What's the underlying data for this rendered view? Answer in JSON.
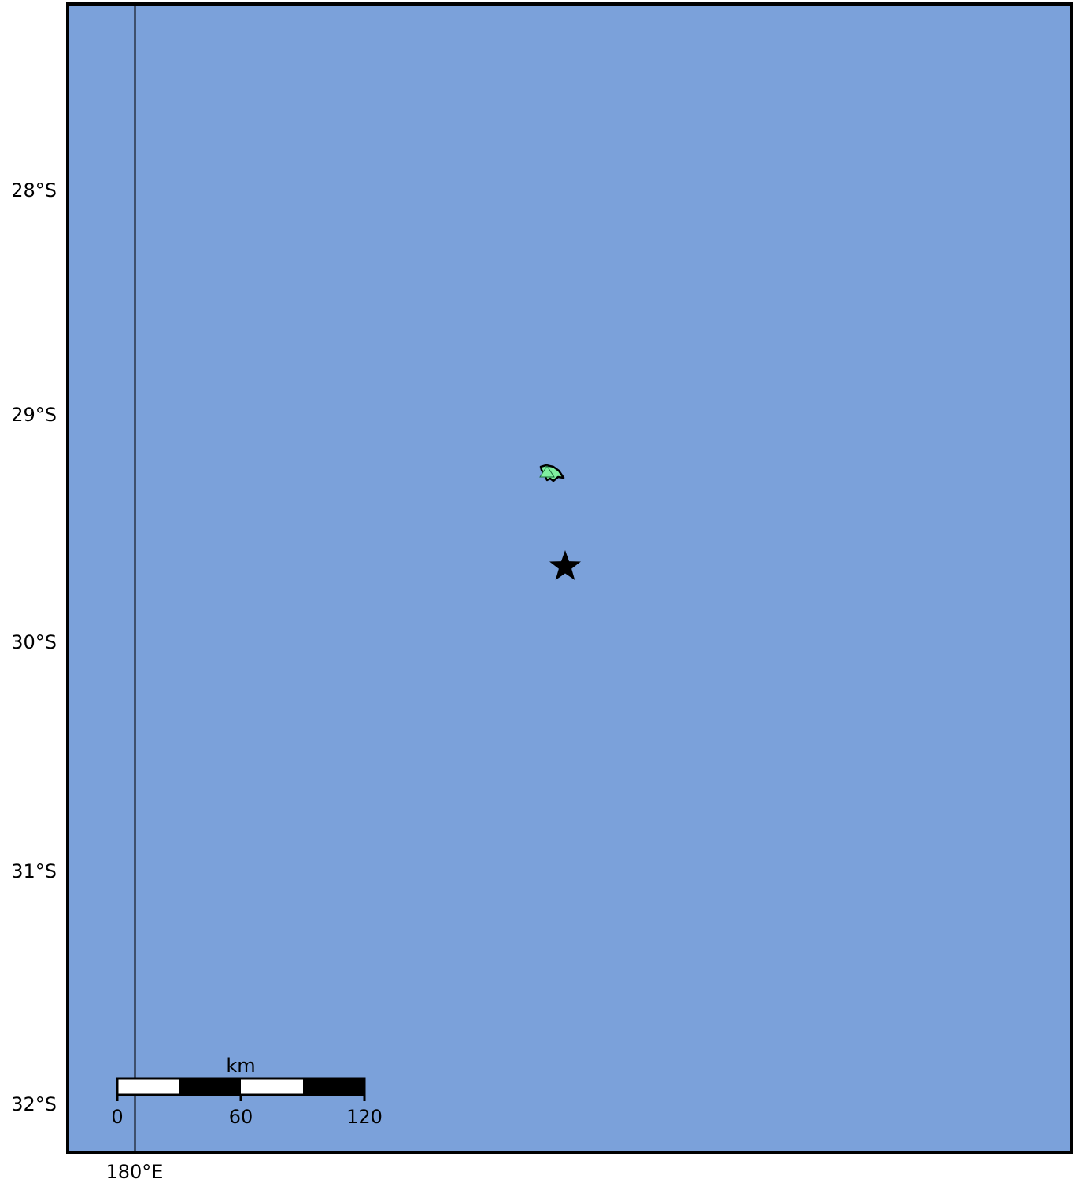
{
  "map": {
    "ocean_color": "#7ba1da",
    "land_color": "#7ff0a0",
    "frame_color": "#000000",
    "lat_labels": [
      "28°S",
      "29°S",
      "30°S",
      "31°S",
      "32°S"
    ],
    "lon_labels": [
      "180°E"
    ],
    "features": {
      "island": {
        "label": "",
        "fill": "#7ff0a0"
      },
      "station_marker": {
        "shape": "triangle",
        "color": "#7ff0a0"
      },
      "epicenter_marker": {
        "shape": "star-icon",
        "color": "#000000"
      }
    },
    "scale_bar": {
      "unit": "km",
      "ticks": [
        "0",
        "60",
        "120"
      ]
    }
  }
}
